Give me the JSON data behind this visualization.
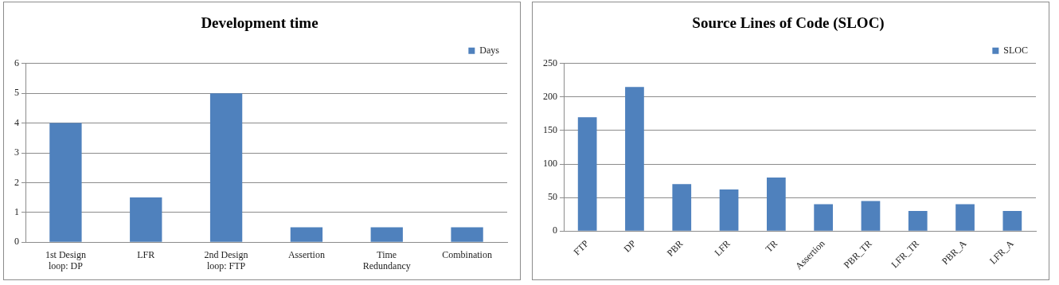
{
  "chart_data": [
    {
      "type": "bar",
      "title": "Development time",
      "categories": [
        "1st Design loop: DP",
        "LFR",
        "2nd Design loop: FTP",
        "Assertion",
        "Time Redundancy",
        "Combination"
      ],
      "series": [
        {
          "name": "Days",
          "color": "#4f81bd",
          "values": [
            4,
            1.5,
            5,
            0.5,
            0.5,
            0.5
          ]
        }
      ],
      "ylim": [
        0,
        6
      ],
      "yticks": [
        0,
        1,
        2,
        3,
        4,
        5,
        6
      ],
      "grid": "y",
      "legend": "top right"
    },
    {
      "type": "bar",
      "title": "Source Lines of Code (SLOC)",
      "categories": [
        "FTP",
        "DP",
        "PBR",
        "LFR",
        "TR",
        "Assertion",
        "PBR_TR",
        "LFR_TR",
        "PBR_A",
        "LFR_A"
      ],
      "series": [
        {
          "name": "SLOC",
          "color": "#4f81bd",
          "values": [
            170,
            215,
            70,
            62,
            80,
            40,
            45,
            30,
            40,
            30
          ]
        }
      ],
      "ylim": [
        0,
        250
      ],
      "yticks": [
        0,
        50,
        100,
        150,
        200,
        250
      ],
      "grid": "y",
      "legend": "top right"
    }
  ]
}
